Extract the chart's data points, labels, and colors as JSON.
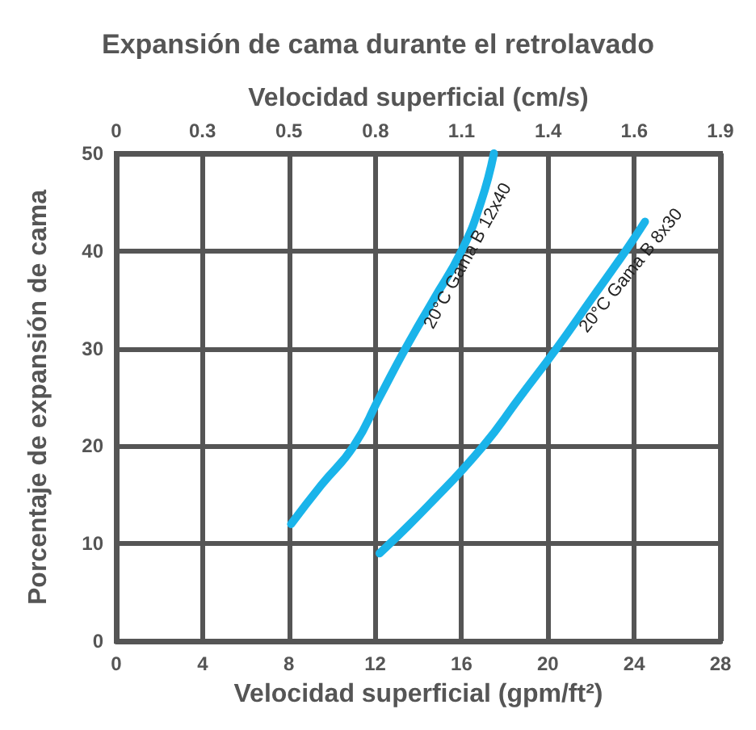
{
  "chart_data": {
    "type": "line",
    "title": "Expansión de cama durante el retrolavado",
    "x2label": "Velocidad superficial (cm/s)",
    "xlabel": "Velocidad superficial (gpm/ft²)",
    "ylabel": "Porcentaje de expansión de cama",
    "xlim": [
      0,
      28
    ],
    "xticks": [
      0,
      4,
      8,
      12,
      16,
      20,
      24,
      28
    ],
    "ylim": [
      0,
      50
    ],
    "yticks": [
      0,
      10,
      20,
      30,
      40,
      50
    ],
    "x2lim": [
      0,
      1.9
    ],
    "x2ticks": [
      0,
      {
        "value": 0.271,
        "label": "0.3"
      },
      {
        "value": 0.543,
        "label": "0.5"
      },
      {
        "value": 0.815,
        "label": "0.8"
      },
      {
        "value": 1.086,
        "label": "1.1"
      },
      {
        "value": 1.358,
        "label": "1.4"
      },
      {
        "value": 1.629,
        "label": "1.6"
      },
      {
        "value": 1.9,
        "label": "1.9"
      }
    ],
    "grid": true,
    "legend": false,
    "marker": "none",
    "line_style": "solid",
    "series": [
      {
        "name": "20°C Gama B 12x40",
        "color": "#1ab4ea",
        "x": [
          8.1,
          9.5,
          11,
          12.2,
          13.4,
          14.7,
          16,
          16.9,
          17.5
        ],
        "values": [
          12,
          16,
          20,
          25,
          30,
          35,
          40,
          45,
          50
        ]
      },
      {
        "name": "20°C Gama B 8x30",
        "color": "#1ab4ea",
        "x": [
          12.2,
          14.5,
          17,
          18.7,
          20.4,
          22,
          23.6,
          24.5
        ],
        "values": [
          9,
          14,
          20,
          25,
          30,
          35,
          40,
          43
        ]
      }
    ]
  }
}
